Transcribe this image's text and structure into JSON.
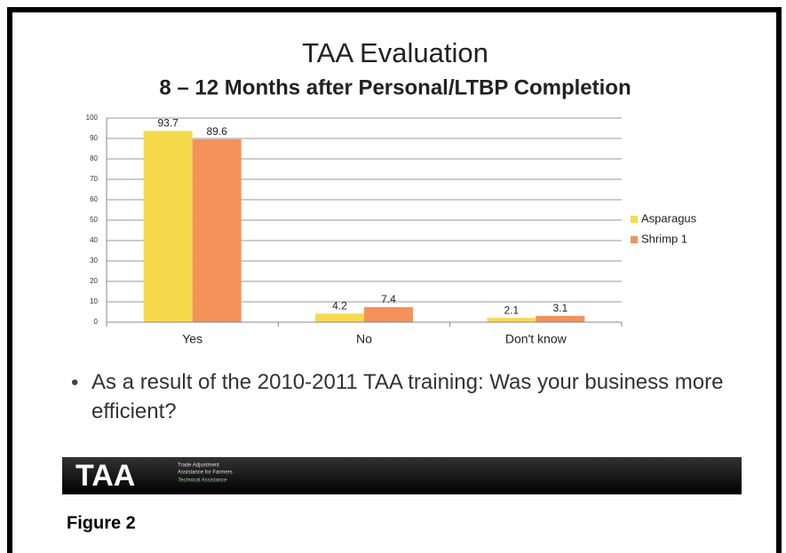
{
  "chart_data": {
    "type": "bar",
    "title": "TAA Evaluation",
    "subtitle": "8 – 12 Months after Personal/LTBP Completion",
    "categories": [
      "Yes",
      "No",
      "Don't know"
    ],
    "series": [
      {
        "name": "Asparagus",
        "color": "#f7d94c",
        "values": [
          93.7,
          4.2,
          2.1
        ]
      },
      {
        "name": "Shrimp 1",
        "color": "#f5915a",
        "values": [
          89.6,
          7.4,
          3.1
        ]
      }
    ],
    "ylim": [
      0,
      100
    ],
    "yticks": [
      0,
      10,
      20,
      30,
      40,
      50,
      60,
      70,
      80,
      90,
      100
    ],
    "grid": true,
    "legend": "right"
  },
  "bullet": "As a result of the 2010-2011 TAA training:  Was your business more efficient?",
  "banner": {
    "logo": "TAA",
    "lines": [
      "Trade Adjustment",
      "Assistance for Farmers",
      "Technical Assistance"
    ]
  },
  "caption": "Figure 2"
}
